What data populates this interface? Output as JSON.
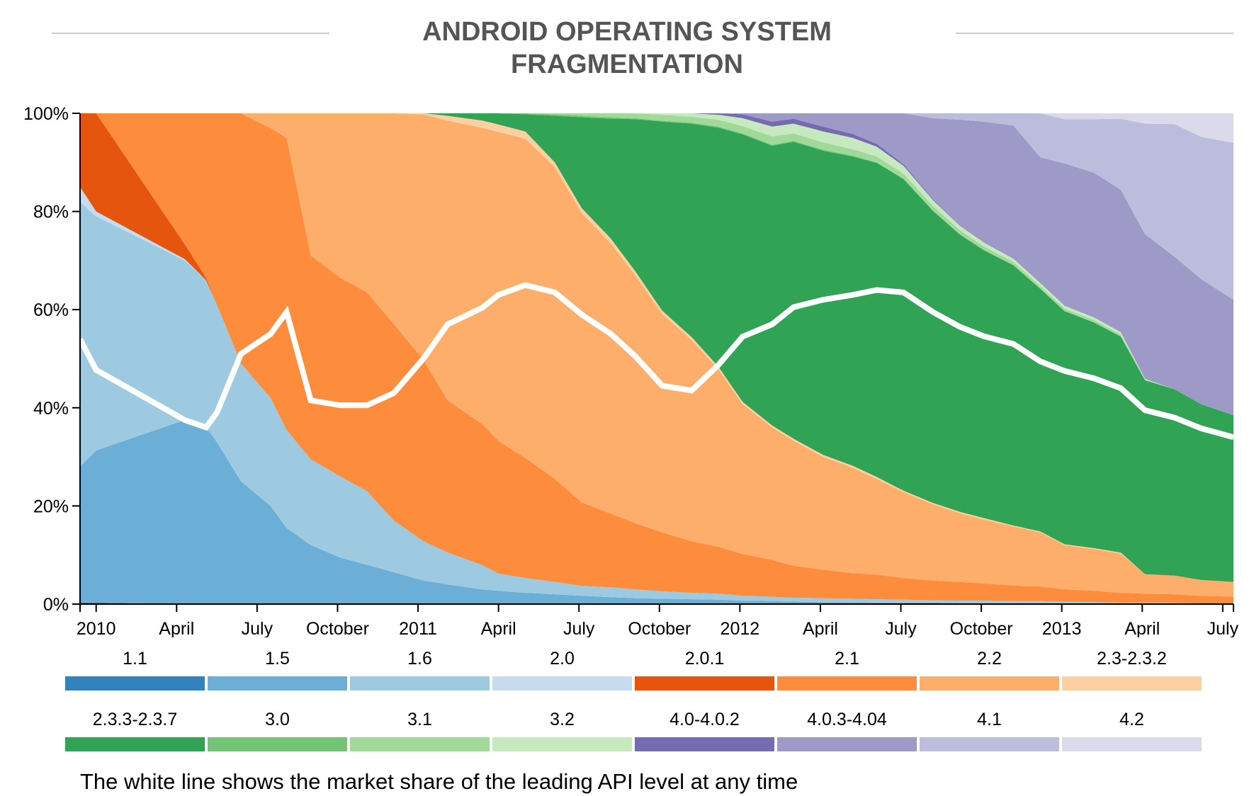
{
  "chart_data": {
    "type": "area",
    "stacked": true,
    "normalized": true,
    "title_lines": [
      "ANDROID OPERATING SYSTEM",
      "FRAGMENTATION"
    ],
    "note": "The white line shows the market share of the leading API level at any time",
    "xlabel": "",
    "ylabel": "",
    "ylim": [
      0,
      100
    ],
    "xlim_months_since_jan_2010": [
      -0.6,
      42.4
    ],
    "y_ticks": [
      "0%",
      "20%",
      "40%",
      "60%",
      "80%",
      "100%"
    ],
    "y_tick_values": [
      0,
      20,
      40,
      60,
      80,
      100
    ],
    "x_ticks": [
      {
        "label": "2010",
        "month": 0
      },
      {
        "label": "April",
        "month": 3
      },
      {
        "label": "July",
        "month": 6
      },
      {
        "label": "October",
        "month": 9
      },
      {
        "label": "2011",
        "month": 12
      },
      {
        "label": "April",
        "month": 15
      },
      {
        "label": "July",
        "month": 18
      },
      {
        "label": "October",
        "month": 21
      },
      {
        "label": "2012",
        "month": 24
      },
      {
        "label": "April",
        "month": 27
      },
      {
        "label": "July",
        "month": 30
      },
      {
        "label": "October",
        "month": 33
      },
      {
        "label": "2013",
        "month": 36
      },
      {
        "label": "April",
        "month": 39
      },
      {
        "label": "July",
        "month": 42
      }
    ],
    "x_months": [
      -0.6,
      0,
      3.3,
      4.1,
      4.5,
      5.4,
      6.5,
      7.1,
      8,
      9.1,
      10.1,
      11.1,
      12.2,
      13.1,
      14.4,
      15,
      16,
      17.1,
      18.1,
      19.2,
      20.1,
      21.1,
      22.2,
      23.2,
      24.1,
      25.2,
      26,
      27.1,
      28.2,
      29.1,
      30.1,
      31.2,
      32.2,
      33.1,
      34.2,
      35.2,
      36.1,
      37.2,
      38.2,
      39.1,
      40.2,
      41.2,
      42.4
    ],
    "series": [
      {
        "name": "1.1",
        "color": "#3182bd",
        "values": [
          0.3,
          0.3,
          0,
          0,
          0,
          0,
          0,
          0,
          0,
          0,
          0,
          0,
          0,
          0,
          0,
          0,
          0,
          0,
          0,
          0,
          0,
          0,
          0,
          0,
          0,
          0,
          0,
          0,
          0,
          0,
          0,
          0,
          0,
          0,
          0,
          0,
          0,
          0,
          0,
          0,
          0,
          0,
          0
        ]
      },
      {
        "name": "1.5",
        "color": "#6baed6",
        "values": [
          27.7,
          31,
          37.5,
          36,
          33,
          25,
          20,
          15.5,
          12,
          9.5,
          8,
          6.5,
          4.8,
          4,
          3,
          2.7,
          2.3,
          2,
          1.7,
          1.4,
          1.2,
          1.1,
          1,
          0.9,
          0.7,
          0.6,
          0.5,
          0.4,
          0.4,
          0.3,
          0.3,
          0.3,
          0.2,
          0.2,
          0.2,
          0.2,
          0.2,
          0.1,
          0.1,
          0.1,
          0.1,
          0,
          0
        ]
      },
      {
        "name": "1.6",
        "color": "#9ecae1",
        "values": [
          54,
          47.7,
          32.5,
          30,
          28,
          24,
          22,
          20,
          17.5,
          16.5,
          15,
          10.5,
          8,
          6.5,
          5,
          3.5,
          3,
          2.5,
          2,
          2,
          1.8,
          1.5,
          1.3,
          1.2,
          1,
          0.9,
          0.8,
          0.8,
          0.7,
          0.7,
          0.6,
          0.5,
          0.5,
          0.5,
          0.4,
          0.4,
          0.3,
          0.3,
          0.2,
          0.2,
          0.2,
          0.1,
          0
        ]
      },
      {
        "name": "2.0",
        "color": "#c6dbef",
        "values": [
          3,
          1,
          0.3,
          0,
          0,
          0,
          0,
          0,
          0,
          0,
          0,
          0,
          0,
          0,
          0,
          0,
          0,
          0,
          0,
          0,
          0,
          0,
          0,
          0,
          0,
          0,
          0,
          0,
          0,
          0,
          0,
          0,
          0,
          0,
          0,
          0,
          0,
          0,
          0,
          0,
          0,
          0,
          0
        ]
      },
      {
        "name": "2.0.1",
        "color": "#e6550d",
        "values": [
          15,
          20,
          3,
          0.5,
          0,
          0,
          0,
          0,
          0,
          0,
          0,
          0,
          0,
          0,
          0,
          0,
          0,
          0,
          0,
          0,
          0,
          0,
          0,
          0,
          0,
          0,
          0,
          0,
          0,
          0,
          0,
          0,
          0,
          0,
          0,
          0,
          0,
          0,
          0,
          0,
          0,
          0,
          0
        ]
      },
      {
        "name": "2.1",
        "color": "#fd8d3c",
        "values": [
          0,
          0,
          26.7,
          33.5,
          39,
          51,
          55,
          59.5,
          41.5,
          40.5,
          40.5,
          40,
          37,
          31,
          29,
          27,
          24.5,
          21,
          17,
          15,
          13.5,
          12,
          10.5,
          9.5,
          8.5,
          7.5,
          6.5,
          5.8,
          5.2,
          5,
          4.4,
          4,
          3.8,
          3.5,
          3.2,
          3,
          2.5,
          2.3,
          2,
          1.8,
          1.7,
          1.6,
          1.5
        ]
      },
      {
        "name": "2.2",
        "color": "#fdae6b",
        "values": [
          0,
          0,
          0,
          0,
          0,
          0,
          3,
          5,
          29,
          33.5,
          36.5,
          43,
          50,
          57,
          61,
          63,
          65,
          63.5,
          59,
          55,
          50.5,
          44.5,
          41,
          36,
          30.5,
          27,
          25.5,
          23,
          21.5,
          19.5,
          17.5,
          15.5,
          14,
          13,
          12,
          11,
          9,
          8.5,
          8,
          4,
          3.8,
          3.2,
          3
        ]
      },
      {
        "name": "2.3-2.3.2",
        "color": "#fdd0a2",
        "values": [
          0,
          0,
          0,
          0,
          0,
          0,
          0,
          0,
          0,
          0,
          0,
          0,
          0.2,
          1,
          1.5,
          1.5,
          1.5,
          1,
          1,
          1,
          0.8,
          0.7,
          0.6,
          0.5,
          0.5,
          0.4,
          0.4,
          0.4,
          0.4,
          0.4,
          0.3,
          0.3,
          0.3,
          0.3,
          0.2,
          0.2,
          0.2,
          0.2,
          0.2,
          0,
          0,
          0,
          0
        ]
      },
      {
        "name": "2.3.3-2.3.7",
        "color": "#31a354",
        "values": [
          0,
          0,
          0,
          0,
          0,
          0,
          0,
          0,
          0,
          0,
          0,
          0,
          0,
          0.5,
          1.5,
          2.3,
          3.5,
          9.5,
          18.5,
          24.5,
          31,
          38.5,
          43.5,
          48.5,
          54.5,
          57,
          60.5,
          62,
          63,
          64,
          63.5,
          59.5,
          56.5,
          54.5,
          53,
          49.5,
          47.5,
          46,
          44,
          39.5,
          38,
          35.8,
          34
        ]
      },
      {
        "name": "3.0",
        "color": "#74c476",
        "values": [
          0,
          0,
          0,
          0,
          0,
          0,
          0,
          0,
          0,
          0,
          0,
          0,
          0,
          0,
          0,
          0,
          0.2,
          0.3,
          0.3,
          0.3,
          0.2,
          0.2,
          0.2,
          0.2,
          0.2,
          0.2,
          0.2,
          0.2,
          0.2,
          0.1,
          0.1,
          0.1,
          0.1,
          0.1,
          0.1,
          0.1,
          0,
          0,
          0,
          0,
          0,
          0,
          0
        ]
      },
      {
        "name": "3.1",
        "color": "#a1d99b",
        "values": [
          0,
          0,
          0,
          0,
          0,
          0,
          0,
          0,
          0,
          0,
          0,
          0,
          0,
          0,
          0,
          0,
          0,
          0.2,
          0.5,
          0.8,
          1,
          1.2,
          1.2,
          1.4,
          1.5,
          1.7,
          1.5,
          1.5,
          1.3,
          1.2,
          1,
          0.9,
          0.8,
          0.7,
          0.6,
          0.5,
          0.5,
          0.5,
          0.4,
          0.2,
          0,
          0,
          0
        ]
      },
      {
        "name": "3.2",
        "color": "#c7e9c0",
        "values": [
          0,
          0,
          0,
          0,
          0,
          0,
          0,
          0,
          0,
          0,
          0,
          0,
          0,
          0,
          0,
          0,
          0,
          0,
          0,
          0,
          0,
          0.3,
          0.7,
          1,
          1.6,
          2,
          2,
          2.2,
          2.3,
          2,
          1.6,
          1.2,
          0.9,
          0.8,
          0.7,
          0.6,
          0.6,
          0.5,
          0.5,
          0.1,
          0,
          0,
          0
        ]
      },
      {
        "name": "4.0-4.0.2",
        "color": "#756bb1",
        "values": [
          0,
          0,
          0,
          0,
          0,
          0,
          0,
          0,
          0,
          0,
          0,
          0,
          0,
          0,
          0,
          0,
          0,
          0,
          0,
          0,
          0,
          0,
          0,
          0.3,
          0.8,
          1,
          1,
          1,
          0.8,
          0.6,
          0.3,
          0.2,
          0.1,
          0.1,
          0.1,
          0.1,
          0,
          0,
          0,
          0,
          0,
          0,
          0
        ]
      },
      {
        "name": "4.0.3-4.04",
        "color": "#9e9ac8",
        "values": [
          0,
          0,
          0,
          0,
          0,
          0,
          0,
          0,
          0,
          0,
          0,
          0,
          0,
          0,
          0,
          0,
          0,
          0,
          0,
          0,
          0,
          0,
          0,
          0,
          0.2,
          1.7,
          1.1,
          2.7,
          4.2,
          6.2,
          10.4,
          16.5,
          21.5,
          24.5,
          27,
          25.5,
          29,
          29.5,
          29,
          29.5,
          27,
          25.5,
          23.5
        ]
      },
      {
        "name": "4.1",
        "color": "#bcbddc",
        "values": [
          0,
          0,
          0,
          0,
          0,
          0,
          0,
          0,
          0,
          0,
          0,
          0,
          0,
          0,
          0,
          0,
          0,
          0,
          0,
          0,
          0,
          0,
          0,
          0,
          0,
          0,
          0,
          0,
          0,
          0,
          0,
          1,
          1.3,
          1.7,
          2.5,
          9,
          9,
          10.9,
          14.5,
          22.5,
          27,
          29,
          32
        ]
      },
      {
        "name": "4.2",
        "color": "#dadaeb",
        "values": [
          0,
          0,
          0,
          0,
          0,
          0,
          0,
          0,
          0,
          0,
          0,
          0,
          0,
          0,
          0,
          0,
          0,
          0,
          0,
          0,
          0,
          0,
          0,
          0,
          0,
          0,
          0,
          0,
          0,
          0,
          0,
          0,
          0,
          0,
          0,
          0,
          1.2,
          1.2,
          1.1,
          2.1,
          2.2,
          4.8,
          6
        ]
      }
    ],
    "leading_share_line": {
      "color": "#ffffff",
      "description": "max share among versions at each date"
    },
    "legend_position": "bottom"
  }
}
